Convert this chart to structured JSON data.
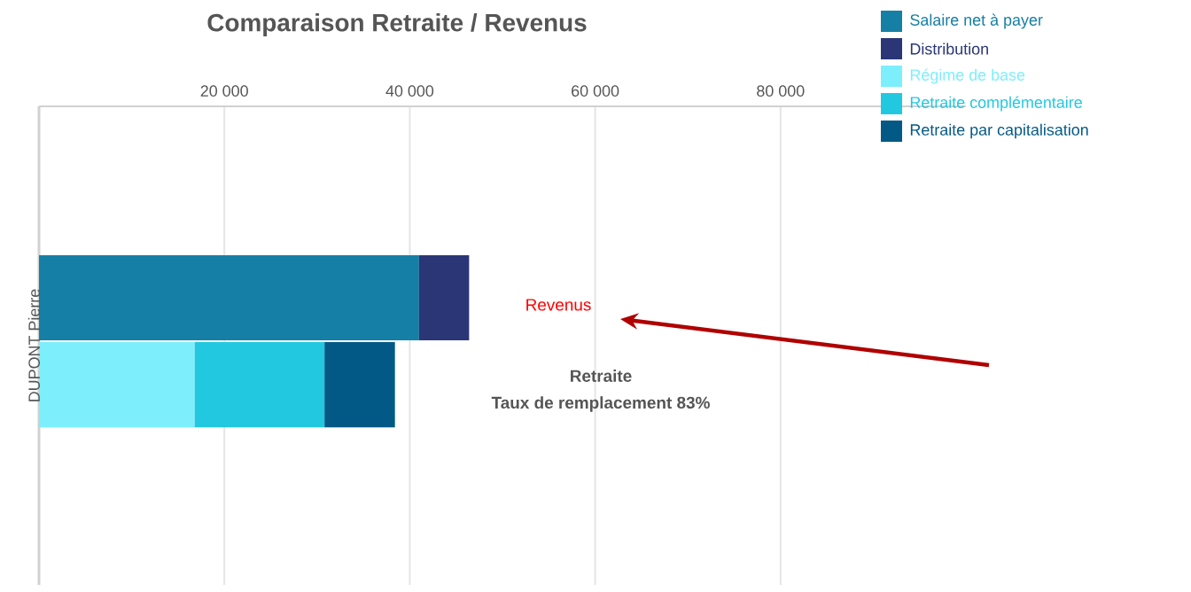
{
  "chart_data": {
    "type": "bar",
    "orientation": "horizontal",
    "stacked": true,
    "title": "Comparaison Retraite / Revenus",
    "ylabel": "DUPONT Pierre",
    "categories": [
      null,
      null
    ],
    "series": [
      {
        "name": "Salaire net à payer",
        "color": "#167fa5",
        "values": [
          41000,
          null
        ]
      },
      {
        "name": "Distribution",
        "color": "#2b3677",
        "values": [
          5400,
          null
        ]
      },
      {
        "name": "Régime de base",
        "color": "#7deefc",
        "values": [
          null,
          16800
        ]
      },
      {
        "name": "Retraite complémentaire",
        "color": "#22c8e0",
        "values": [
          null,
          14000
        ]
      },
      {
        "name": "Retraite par capitalisation",
        "color": "#035985",
        "values": [
          null,
          7600
        ]
      }
    ],
    "xlim": [
      0,
      100000
    ],
    "xticks": [
      {
        "value": 20000,
        "label": "20 000"
      },
      {
        "value": 40000,
        "label": "40 000"
      },
      {
        "value": 60000,
        "label": "60 000"
      },
      {
        "value": 80000,
        "label": "80 000"
      }
    ],
    "grid": "x",
    "legend": "top right",
    "annotations": [
      "Revenus",
      "Retraite",
      "Taux de remplacement 83%"
    ]
  }
}
